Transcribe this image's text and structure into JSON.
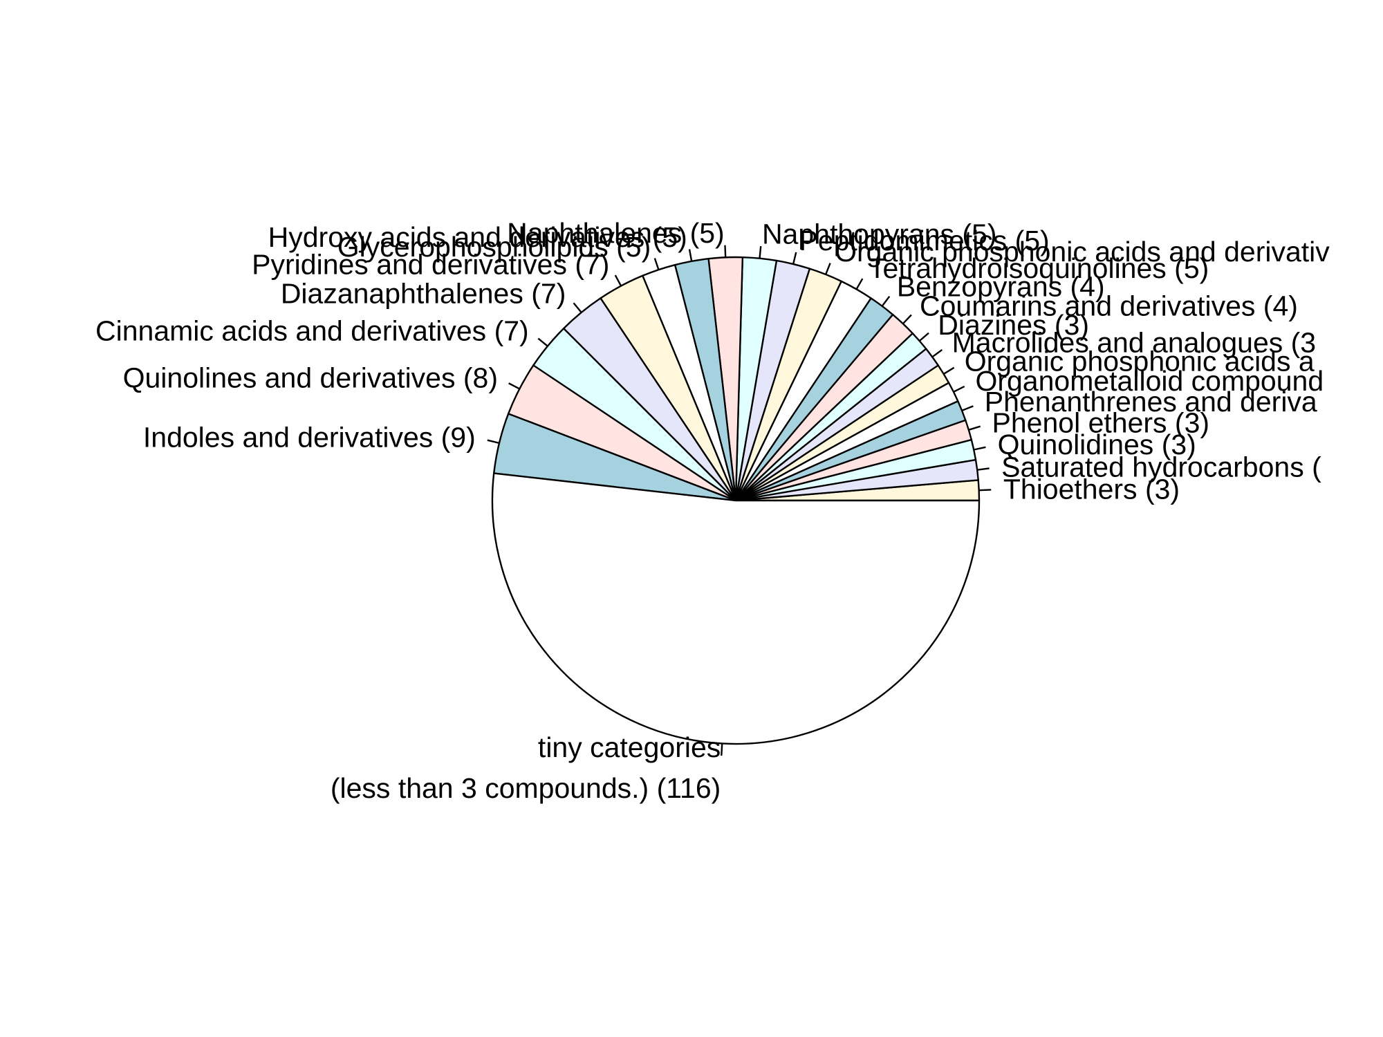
{
  "chart_data": {
    "type": "pie",
    "start_angle": "0 degrees (3 o'clock), counter-clockwise",
    "slices": [
      {
        "label": "Thioethers (3)",
        "value": 3,
        "color": "#FFF8DC"
      },
      {
        "label": "Saturated hydrocarbons (",
        "value": 3,
        "color": "#E6E6FA"
      },
      {
        "label": "Quinolidines (3)",
        "value": 3,
        "color": "#E0FFFF"
      },
      {
        "label": "Phenol ethers (3)",
        "value": 3,
        "color": "#FFE4E1"
      },
      {
        "label": "Phenanthrenes and deriva",
        "value": 3,
        "color": "#A6D2E0"
      },
      {
        "label": "Organometalloid compound",
        "value": 3,
        "color": "#FFFFFF"
      },
      {
        "label": "Organic phosphonic acids a",
        "value": 3,
        "color": "#FFF8DC"
      },
      {
        "label": "Macrolides and analogues (3",
        "value": 3,
        "color": "#E6E6FA"
      },
      {
        "label": "Diazines (3)",
        "value": 3,
        "color": "#E0FFFF"
      },
      {
        "label": "Coumarins and derivatives (4)",
        "value": 4,
        "color": "#FFE4E1"
      },
      {
        "label": "Benzopyrans (4)",
        "value": 4,
        "color": "#A6D2E0"
      },
      {
        "label": "Tetrahydroisoquinolines (5)",
        "value": 5,
        "color": "#FFFFFF"
      },
      {
        "label": "Organic phosphonic acids and derivativ",
        "value": 5,
        "color": "#FFF8DC"
      },
      {
        "label": "Peptidomimetics (5)",
        "value": 5,
        "color": "#E6E6FA"
      },
      {
        "label": "Naphthopyrans (5)",
        "value": 5,
        "color": "#E0FFFF"
      },
      {
        "label": "Naphthalenes (5)",
        "value": 5,
        "color": "#FFE4E1"
      },
      {
        "label": "Hydroxy acids and derivatives (5)",
        "value": 5,
        "color": "#A6D2E0"
      },
      {
        "label": "Glycerophospholipids (5)",
        "value": 5,
        "color": "#FFFFFF"
      },
      {
        "label": "Pyridines and derivatives (7)",
        "value": 7,
        "color": "#FFF8DC"
      },
      {
        "label": "Diazanaphthalenes (7)",
        "value": 7,
        "color": "#E6E6FA"
      },
      {
        "label": "Cinnamic acids and derivatives (7)",
        "value": 7,
        "color": "#E0FFFF"
      },
      {
        "label": "Quinolines and derivatives (8)",
        "value": 8,
        "color": "#FFE4E1"
      },
      {
        "label": "Indoles and derivatives (9)",
        "value": 9,
        "color": "#A6D2E0"
      },
      {
        "label": "tiny categories\n(less than 3 compounds.) (116)",
        "value": 116,
        "color": "#FFFFFF"
      }
    ]
  }
}
